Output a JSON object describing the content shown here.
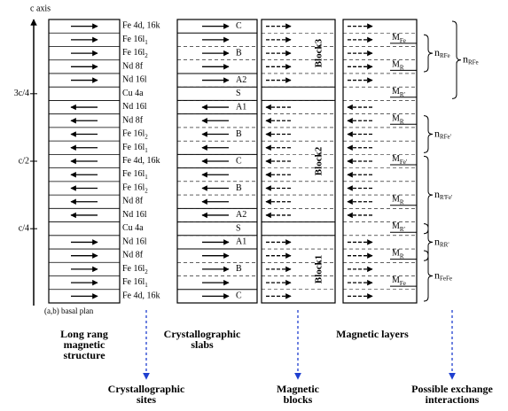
{
  "axis": {
    "label": "c axis",
    "ticks": [
      "3c/4",
      "c/2",
      "c/4"
    ]
  },
  "basal_label": "(a,b) basal plan",
  "sites": [
    {
      "name": "Fe 4d, 16k",
      "spin": "right"
    },
    {
      "name": "Fe 16l",
      "sub": "1",
      "spin": "right"
    },
    {
      "name": "Fe 16l",
      "sub": "2",
      "spin": "right"
    },
    {
      "name": "Nd 8f",
      "spin": "right"
    },
    {
      "name": "Nd 16l",
      "spin": "right"
    },
    {
      "name": "Cu 4a"
    },
    {
      "name": "Nd 16l",
      "spin": "left"
    },
    {
      "name": "Nd 8f",
      "spin": "left"
    },
    {
      "name": "Fe 16l",
      "sub": "2",
      "spin": "left"
    },
    {
      "name": "Fe 16l",
      "sub": "1",
      "spin": "left"
    },
    {
      "name": "Fe 4d, 16k",
      "spin": "left"
    },
    {
      "name": "Fe 16l",
      "sub": "1",
      "spin": "left"
    },
    {
      "name": "Fe 16l",
      "sub": "2",
      "spin": "left"
    },
    {
      "name": "Nd 8f",
      "spin": "left"
    },
    {
      "name": "Nd 16l",
      "spin": "left"
    },
    {
      "name": "Cu 4a"
    },
    {
      "name": "Nd 16l",
      "spin": "right"
    },
    {
      "name": "Nd 8f",
      "spin": "right"
    },
    {
      "name": "Fe 16l",
      "sub": "2",
      "spin": "right"
    },
    {
      "name": "Fe 16l",
      "sub": "1",
      "spin": "right"
    },
    {
      "name": "Fe 4d, 16k",
      "spin": "right"
    }
  ],
  "slabs": [
    {
      "label": "C",
      "span": 1
    },
    {
      "label": "B",
      "span": 3
    },
    {
      "label": "A2",
      "span": 1
    },
    {
      "label": "S",
      "span": 1
    },
    {
      "label": "A1",
      "span": 1
    },
    {
      "label": "B",
      "span": 3
    },
    {
      "label": "C",
      "span": 1
    },
    {
      "label": "B",
      "span": 3
    },
    {
      "label": "A2",
      "span": 1
    },
    {
      "label": "S",
      "span": 1
    },
    {
      "label": "A1",
      "span": 1
    },
    {
      "label": "B",
      "span": 3
    },
    {
      "label": "C",
      "span": 1
    }
  ],
  "blocks": [
    {
      "label": "Block3",
      "span": 5
    },
    {
      "span": 1
    },
    {
      "label": "Block2",
      "span": 9
    },
    {
      "span": 1
    },
    {
      "label": "Block1",
      "span": 5
    }
  ],
  "layers": [
    {
      "text": "M",
      "sub": "Fe"
    },
    {
      "text": "M",
      "sub": "R"
    },
    {
      "text": "M",
      "sub": "R'"
    },
    {
      "text": "M",
      "sub": "R"
    },
    {
      "text": "M",
      "sub": "Fe'"
    },
    {
      "text": "M",
      "sub": "R"
    },
    {
      "text": "M",
      "sub": "R'"
    },
    {
      "text": "M",
      "sub": "R"
    },
    {
      "text": "M",
      "sub": "Fe"
    }
  ],
  "interactions": [
    {
      "text": "n",
      "sub": "RFe"
    },
    {
      "text": "n",
      "sub": "RFe"
    },
    {
      "text": "n",
      "sub": "RFe'"
    },
    {
      "text": "n",
      "sub": "R'Fe'"
    },
    {
      "text": "n",
      "sub": "RR'"
    },
    {
      "text": "n",
      "sub": "FeFe"
    }
  ],
  "headings": [
    "Long rang magnetic structure",
    "Crystallographic slabs",
    "Magnetic layers"
  ],
  "outputs": [
    "Crystallographic sites",
    "Magnetic blocks",
    "Possible exchange interactions"
  ]
}
